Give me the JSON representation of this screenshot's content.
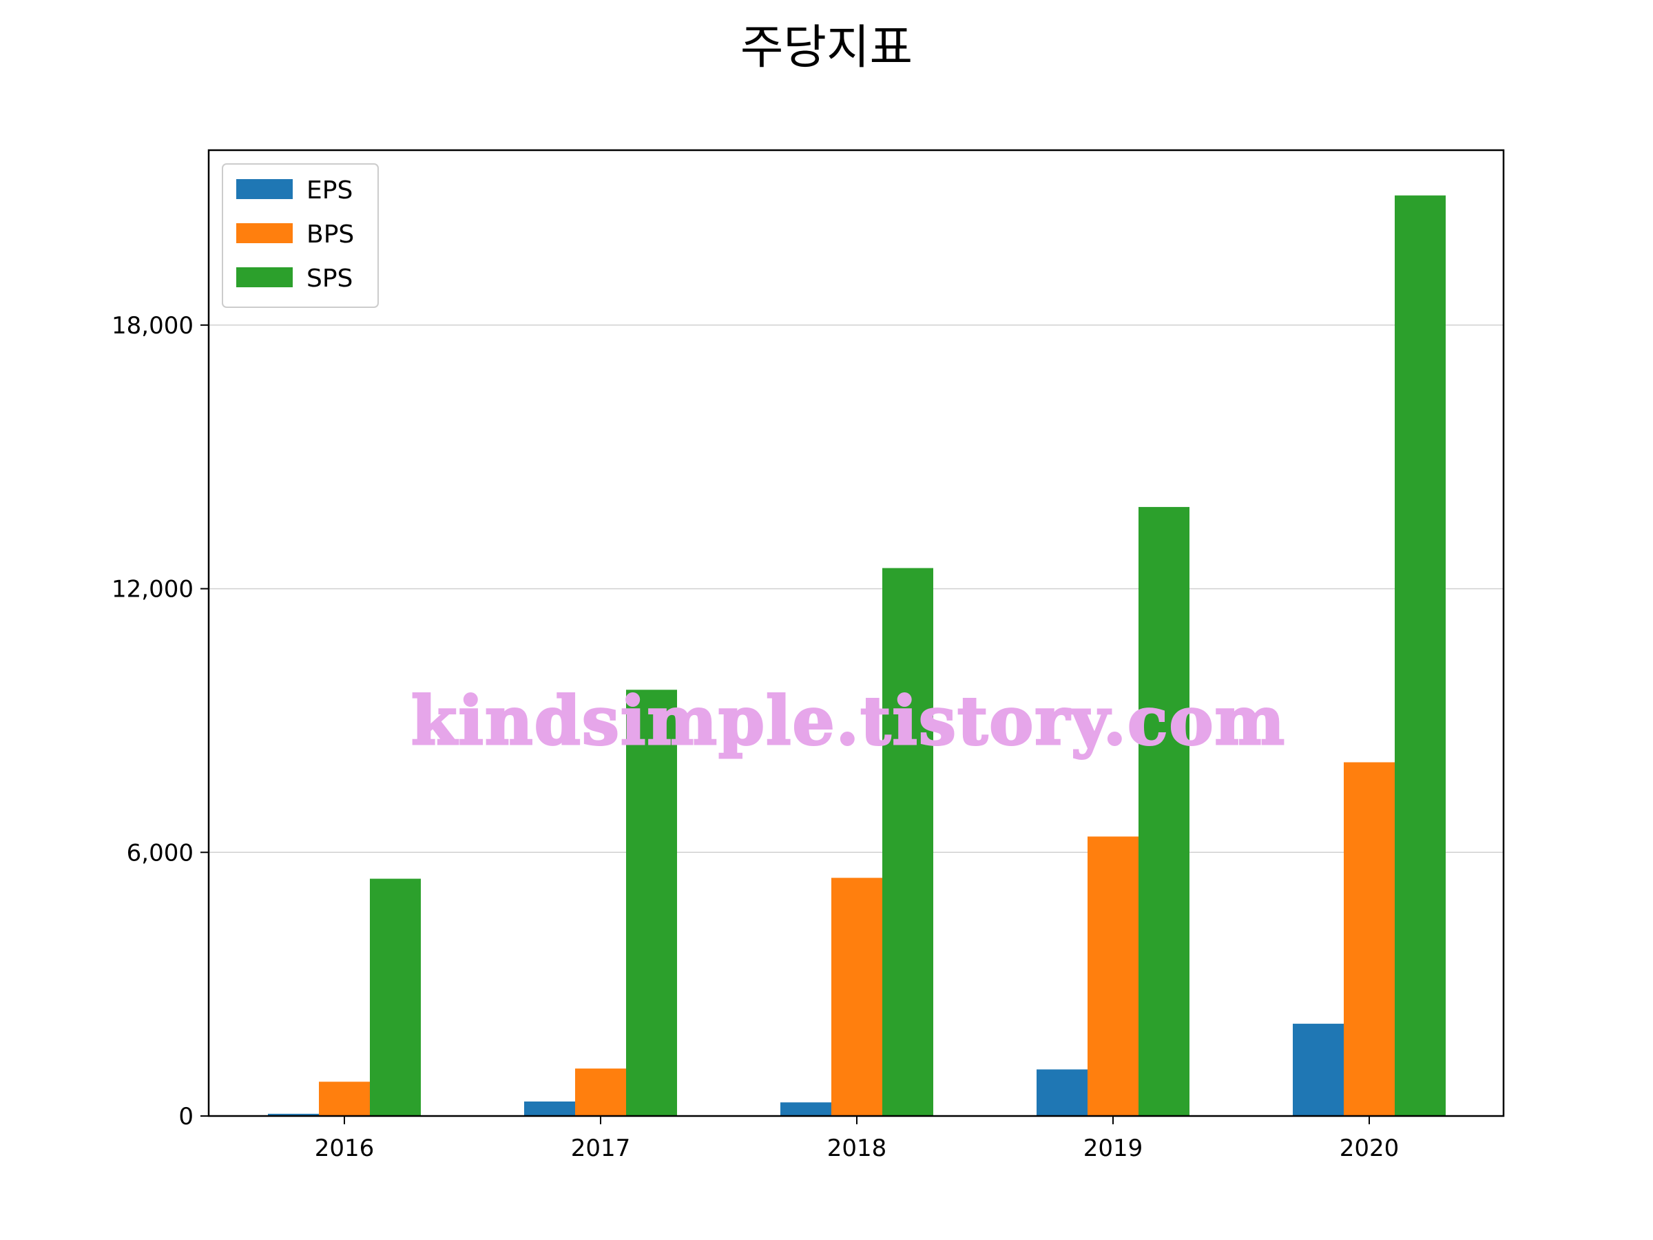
{
  "chart_data": {
    "type": "bar",
    "title": "주당지표",
    "xlabel": "",
    "ylabel": "",
    "categories": [
      "2016",
      "2017",
      "2018",
      "2019",
      "2020"
    ],
    "series": [
      {
        "name": "EPS",
        "color": "#1f77b4",
        "values": [
          50,
          330,
          310,
          1060,
          2100
        ]
      },
      {
        "name": "BPS",
        "color": "#ff7f0e",
        "values": [
          780,
          1080,
          5420,
          6360,
          8050
        ]
      },
      {
        "name": "SPS",
        "color": "#2ca02c",
        "values": [
          5400,
          9700,
          12470,
          13860,
          20950
        ]
      }
    ],
    "ylim": [
      0,
      21980
    ],
    "yticks": [
      0,
      6000,
      12000,
      18000
    ],
    "ytick_labels": [
      "0",
      "6,000",
      "12,000",
      "18,000"
    ],
    "grid": "y-major",
    "legend_position": "upper-left",
    "watermark": "kindsimple.tistory.com"
  }
}
